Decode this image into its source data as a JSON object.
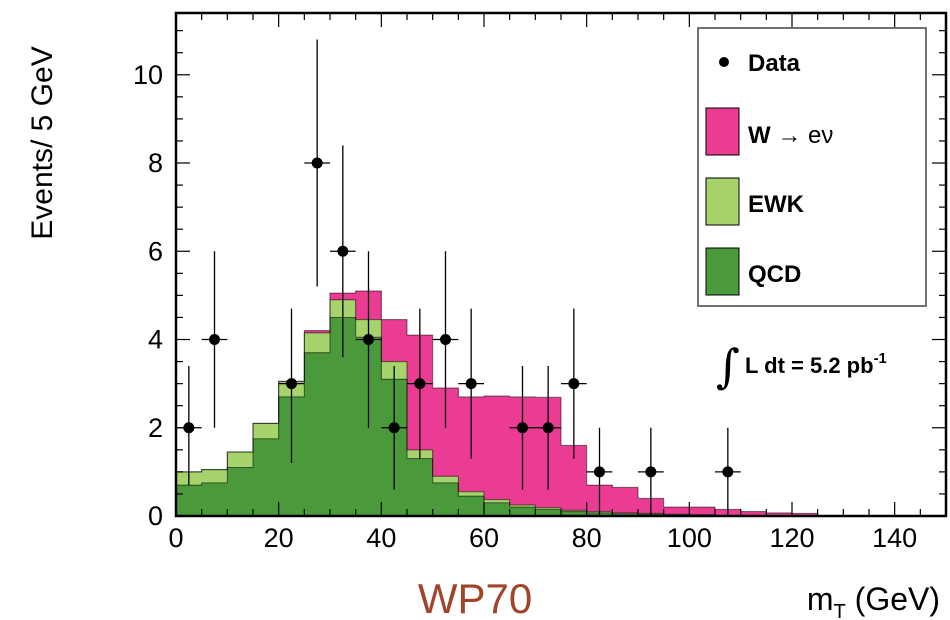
{
  "chart_data": {
    "type": "bar",
    "subtype": "stacked-histogram-with-data-points",
    "caption": "WP70",
    "xlabel_main": "m",
    "xlabel_sub": "T",
    "xlabel_unit": " (GeV)",
    "ylabel": "Events/ 5 GeV",
    "xlim": [
      0,
      150
    ],
    "ylim": [
      0,
      11.4
    ],
    "x_ticks": [
      0,
      20,
      40,
      60,
      80,
      100,
      120,
      140
    ],
    "y_ticks": [
      0,
      2,
      4,
      6,
      8,
      10
    ],
    "bin_width": 5,
    "bin_edges": [
      0,
      5,
      10,
      15,
      20,
      25,
      30,
      35,
      40,
      45,
      50,
      55,
      60,
      65,
      70,
      75,
      80,
      85,
      90,
      95,
      100,
      105,
      110,
      115,
      120,
      125
    ],
    "stack": [
      {
        "name": "QCD",
        "color": "#4a9a3c",
        "values": [
          0.7,
          0.75,
          1.1,
          1.75,
          2.7,
          3.7,
          4.5,
          4.05,
          3.1,
          1.3,
          0.75,
          0.45,
          0.3,
          0.2,
          0.15,
          0.1,
          0.07,
          0.05,
          0.04,
          0.03,
          0.02,
          0.0,
          0.0,
          0.0,
          0.0
        ]
      },
      {
        "name": "EWK",
        "color": "#a6d36b",
        "values": [
          0.3,
          0.3,
          0.35,
          0.35,
          0.35,
          0.45,
          0.4,
          0.4,
          0.4,
          0.2,
          0.15,
          0.1,
          0.07,
          0.05,
          0.04,
          0.03,
          0.03,
          0.02,
          0.02,
          0.01,
          0.01,
          0.0,
          0.0,
          0.0,
          0.0
        ]
      },
      {
        "name": "W → eν",
        "color": "#ea3c92",
        "values": [
          0.0,
          0.0,
          0.0,
          0.0,
          0.0,
          0.05,
          0.15,
          0.65,
          0.95,
          2.6,
          2.0,
          2.15,
          2.35,
          2.45,
          2.5,
          1.47,
          0.6,
          0.58,
          0.34,
          0.16,
          0.17,
          0.15,
          0.1,
          0.07,
          0.06
        ]
      }
    ],
    "data_points": [
      {
        "x": 2.5,
        "y": 2,
        "err_lo": 1.3,
        "err_hi": 1.4
      },
      {
        "x": 7.5,
        "y": 4,
        "err_lo": 2.0,
        "err_hi": 2.0
      },
      {
        "x": 22.5,
        "y": 3,
        "err_lo": 1.8,
        "err_hi": 1.7
      },
      {
        "x": 27.5,
        "y": 8,
        "err_lo": 2.8,
        "err_hi": 2.8
      },
      {
        "x": 32.5,
        "y": 6,
        "err_lo": 2.4,
        "err_hi": 2.4
      },
      {
        "x": 37.5,
        "y": 4,
        "err_lo": 2.0,
        "err_hi": 2.0
      },
      {
        "x": 42.5,
        "y": 2,
        "err_lo": 1.4,
        "err_hi": 1.4
      },
      {
        "x": 47.5,
        "y": 3,
        "err_lo": 1.7,
        "err_hi": 1.7
      },
      {
        "x": 52.5,
        "y": 4,
        "err_lo": 2.0,
        "err_hi": 2.0
      },
      {
        "x": 57.5,
        "y": 3,
        "err_lo": 1.7,
        "err_hi": 1.7
      },
      {
        "x": 67.5,
        "y": 2,
        "err_lo": 1.4,
        "err_hi": 1.4
      },
      {
        "x": 72.5,
        "y": 2,
        "err_lo": 1.4,
        "err_hi": 1.4
      },
      {
        "x": 77.5,
        "y": 3,
        "err_lo": 1.7,
        "err_hi": 1.7
      },
      {
        "x": 82.5,
        "y": 1,
        "err_lo": 1.0,
        "err_hi": 1.0
      },
      {
        "x": 92.5,
        "y": 1,
        "err_lo": 1.0,
        "err_hi": 1.0
      },
      {
        "x": 107.5,
        "y": 1,
        "err_lo": 1.0,
        "err_hi": 1.0
      }
    ],
    "legend": {
      "placement": "top-right",
      "entries": [
        {
          "label_main": "Data",
          "label_suffix": "",
          "kind": "marker",
          "color": "#000000"
        },
        {
          "label_main": "W",
          "label_suffix": " → eν",
          "kind": "box",
          "color": "#ea3c92"
        },
        {
          "label_main": "EWK",
          "label_suffix": "",
          "kind": "box",
          "color": "#a6d36b"
        },
        {
          "label_main": "QCD",
          "label_suffix": "",
          "kind": "box",
          "color": "#4a9a3c"
        }
      ]
    },
    "annotation": {
      "integral_sign": "∫",
      "text_main": "L dt = 5.2 pb",
      "text_sup": "-1"
    },
    "grid": false
  }
}
